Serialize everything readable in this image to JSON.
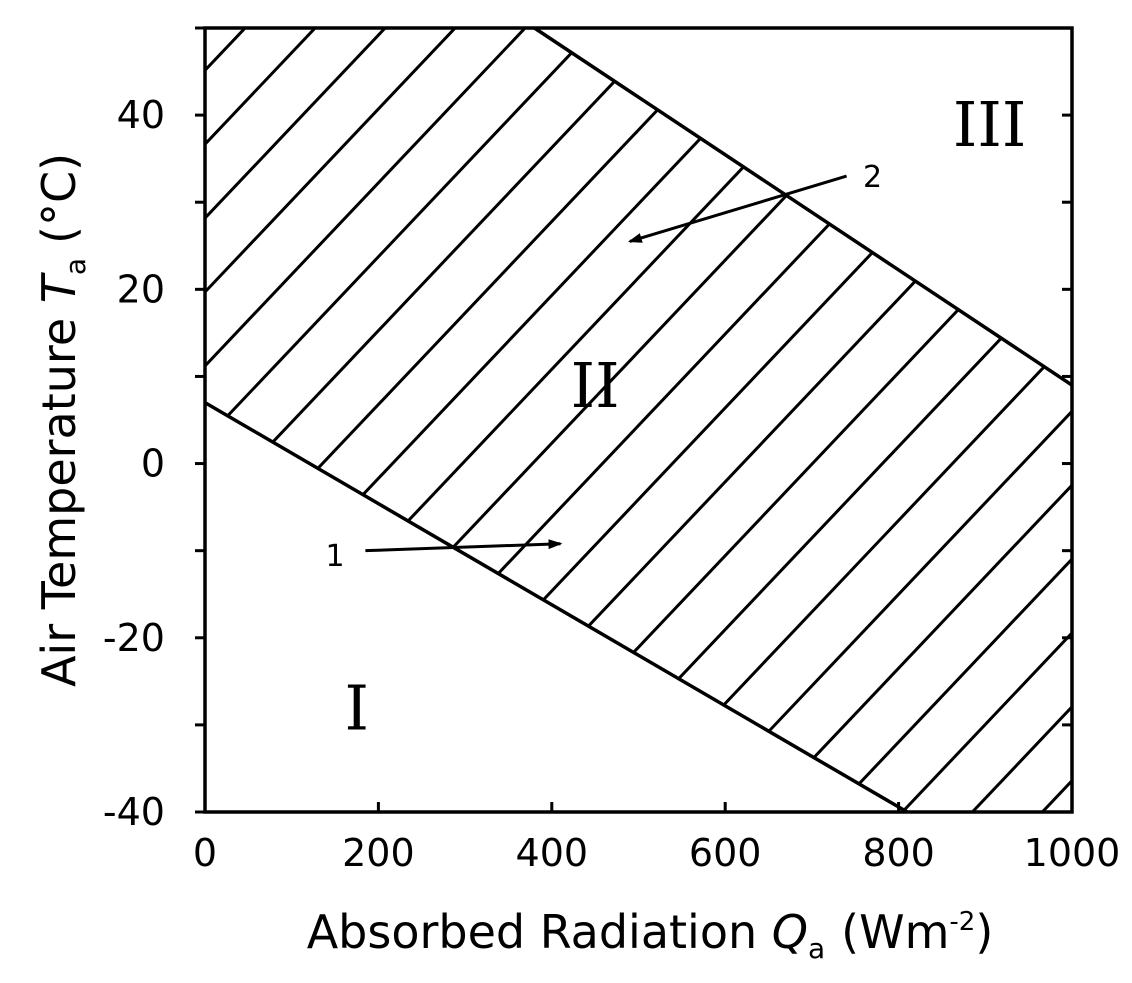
{
  "chart_data": {
    "type": "area",
    "title": "",
    "xlabel": "Absorbed Radiation",
    "xlabel_symbol": "Q",
    "xlabel_subscript": "a",
    "xlabel_unit_open": "(Wm",
    "xlabel_unit_exp": "-2",
    "xlabel_unit_close": ")",
    "ylabel": "Air Temperature",
    "ylabel_symbol": "T",
    "ylabel_subscript": "a",
    "ylabel_unit": "(°C)",
    "xlim": [
      0,
      1000
    ],
    "ylim": [
      -40,
      50
    ],
    "xticks": [
      0,
      200,
      400,
      600,
      800,
      1000
    ],
    "xtick_labels": [
      "0",
      "200",
      "400",
      "600",
      "800",
      "1000"
    ],
    "yticks": [
      -40,
      -20,
      0,
      20,
      40
    ],
    "ytick_labels": [
      "-40",
      "-20",
      "0",
      "20",
      "40"
    ],
    "grid": false,
    "series": [
      {
        "name": "1",
        "x": [
          0,
          810
        ],
        "y": [
          7,
          -40
        ]
      },
      {
        "name": "2",
        "x": [
          380,
          1000
        ],
        "y": [
          50,
          9
        ]
      }
    ],
    "regions": [
      {
        "label": "I",
        "x": 175,
        "y": -28,
        "hatched": false
      },
      {
        "label": "II",
        "x": 450,
        "y": 9,
        "hatched": true
      },
      {
        "label": "III",
        "x": 905,
        "y": 39,
        "hatched": false
      }
    ],
    "annotations": [
      {
        "text": "1",
        "text_x": 150,
        "text_y": -10.5,
        "from_x": 185,
        "from_y": -10,
        "to_x": 410,
        "to_y": -9.2
      },
      {
        "text": "2",
        "text_x": 770,
        "text_y": 33,
        "from_x": 740,
        "from_y": 33,
        "to_x": 490,
        "to_y": 25.5
      }
    ]
  }
}
